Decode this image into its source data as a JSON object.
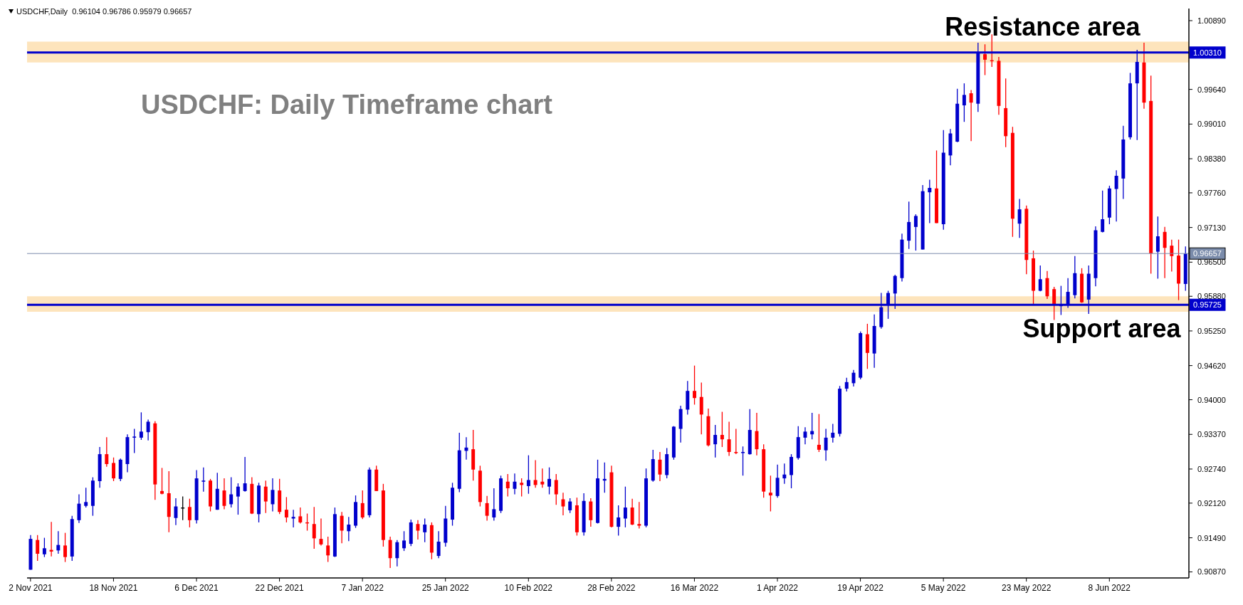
{
  "chart_data": {
    "type": "candlestick",
    "title": "USDCHF: Daily Timeframe chart",
    "annotations": [
      "USDCHF,Daily  0.96104 0.96786 0.95979 0.96657"
    ],
    "categories": [
      "2 Nov 2021",
      null,
      null,
      null,
      null,
      null,
      null,
      null,
      null,
      null,
      null,
      null,
      "18 Nov 2021",
      null,
      null,
      null,
      null,
      null,
      null,
      null,
      null,
      null,
      null,
      null,
      "6 Dec 2021",
      null,
      null,
      null,
      null,
      null,
      null,
      null,
      null,
      null,
      null,
      null,
      "22 Dec 2021",
      null,
      null,
      null,
      null,
      null,
      null,
      null,
      null,
      null,
      null,
      null,
      "7 Jan 2022",
      null,
      null,
      null,
      null,
      null,
      null,
      null,
      null,
      null,
      null,
      null,
      "25 Jan 2022",
      null,
      null,
      null,
      null,
      null,
      null,
      null,
      null,
      null,
      null,
      null,
      "10 Feb 2022",
      null,
      null,
      null,
      null,
      null,
      null,
      null,
      null,
      null,
      null,
      null,
      "28 Feb 2022",
      null,
      null,
      null,
      null,
      null,
      null,
      null,
      null,
      null,
      null,
      null,
      "16 Mar 2022",
      null,
      null,
      null,
      null,
      null,
      null,
      null,
      null,
      null,
      null,
      null,
      "1 Apr 2022",
      null,
      null,
      null,
      null,
      null,
      null,
      null,
      null,
      null,
      null,
      null,
      "19 Apr 2022",
      null,
      null,
      null,
      null,
      null,
      null,
      null,
      null,
      null,
      null,
      null,
      "5 May 2022",
      null,
      null,
      null,
      null,
      null,
      null,
      null,
      null,
      null,
      null,
      null,
      "23 May 2022",
      null,
      null,
      null,
      null,
      null,
      null,
      null,
      null,
      null,
      null,
      null,
      "8 Jun 2022",
      null,
      null,
      null,
      null,
      null,
      null,
      null,
      null,
      null,
      null,
      null
    ],
    "ohlc": [
      [
        0.9091,
        0.9154,
        0.9091,
        0.9147
      ],
      [
        0.9145,
        0.9154,
        0.9107,
        0.912
      ],
      [
        0.9119,
        0.9149,
        0.9114,
        0.913
      ],
      [
        0.9127,
        0.9178,
        0.9115,
        0.9124
      ],
      [
        0.9126,
        0.9161,
        0.912,
        0.9136
      ],
      [
        0.9135,
        0.9158,
        0.9105,
        0.9114
      ],
      [
        0.9115,
        0.9189,
        0.9107,
        0.9183
      ],
      [
        0.9181,
        0.9228,
        0.9176,
        0.9211
      ],
      [
        0.9207,
        0.924,
        0.9204,
        0.9214
      ],
      [
        0.9207,
        0.9259,
        0.9189,
        0.9253
      ],
      [
        0.9252,
        0.9314,
        0.924,
        0.9301
      ],
      [
        0.9301,
        0.9332,
        0.9278,
        0.9283
      ],
      [
        0.9285,
        0.9295,
        0.9252,
        0.9257
      ],
      [
        0.9256,
        0.9293,
        0.9252,
        0.9291
      ],
      [
        0.9283,
        0.9337,
        0.9268,
        0.9332
      ],
      [
        0.9331,
        0.9347,
        0.9303,
        0.9333
      ],
      [
        0.9331,
        0.9377,
        0.9327,
        0.9342
      ],
      [
        0.9341,
        0.9364,
        0.9326,
        0.936
      ],
      [
        0.9357,
        0.9361,
        0.9218,
        0.9246
      ],
      [
        0.9234,
        0.9276,
        0.9228,
        0.9229
      ],
      [
        0.923,
        0.927,
        0.9159,
        0.9187
      ],
      [
        0.9185,
        0.9221,
        0.9172,
        0.9206
      ],
      [
        0.9204,
        0.9224,
        0.9181,
        0.9204
      ],
      [
        0.9205,
        0.922,
        0.9168,
        0.9181
      ],
      [
        0.9181,
        0.9272,
        0.9175,
        0.9257
      ],
      [
        0.9251,
        0.9277,
        0.9233,
        0.9253
      ],
      [
        0.9253,
        0.9256,
        0.9197,
        0.9206
      ],
      [
        0.92,
        0.9267,
        0.92,
        0.9238
      ],
      [
        0.9235,
        0.9257,
        0.9201,
        0.9207
      ],
      [
        0.921,
        0.9259,
        0.9204,
        0.9228
      ],
      [
        0.9224,
        0.9248,
        0.9191,
        0.9242
      ],
      [
        0.9234,
        0.9296,
        0.9233,
        0.9248
      ],
      [
        0.9247,
        0.9259,
        0.9192,
        0.9193
      ],
      [
        0.9192,
        0.9249,
        0.9177,
        0.9244
      ],
      [
        0.9242,
        0.9253,
        0.9194,
        0.9215
      ],
      [
        0.921,
        0.9257,
        0.9197,
        0.9236
      ],
      [
        0.9235,
        0.9256,
        0.9192,
        0.9196
      ],
      [
        0.92,
        0.9223,
        0.9177,
        0.9186
      ],
      [
        0.9184,
        0.92,
        0.9168,
        0.9187
      ],
      [
        0.9188,
        0.9204,
        0.9175,
        0.9177
      ],
      [
        0.9177,
        0.9193,
        0.9162,
        0.9176
      ],
      [
        0.9174,
        0.9205,
        0.9129,
        0.9148
      ],
      [
        0.9147,
        0.9184,
        0.9135,
        0.9137
      ],
      [
        0.9135,
        0.9151,
        0.9105,
        0.9117
      ],
      [
        0.9115,
        0.9204,
        0.9114,
        0.9192
      ],
      [
        0.9189,
        0.9196,
        0.9139,
        0.9162
      ],
      [
        0.9161,
        0.9187,
        0.9143,
        0.9173
      ],
      [
        0.9171,
        0.9226,
        0.9167,
        0.9214
      ],
      [
        0.9212,
        0.9235,
        0.9183,
        0.9186
      ],
      [
        0.919,
        0.9277,
        0.9186,
        0.9273
      ],
      [
        0.9273,
        0.928,
        0.9234,
        0.9234
      ],
      [
        0.9235,
        0.9247,
        0.9133,
        0.9145
      ],
      [
        0.9145,
        0.9151,
        0.9094,
        0.9112
      ],
      [
        0.9112,
        0.9145,
        0.9097,
        0.9141
      ],
      [
        0.913,
        0.9161,
        0.9125,
        0.9144
      ],
      [
        0.9138,
        0.9182,
        0.9134,
        0.9177
      ],
      [
        0.9174,
        0.9181,
        0.9146,
        0.9162
      ],
      [
        0.9159,
        0.9184,
        0.9141,
        0.9173
      ],
      [
        0.9172,
        0.9177,
        0.911,
        0.9122
      ],
      [
        0.9116,
        0.9161,
        0.9112,
        0.9142
      ],
      [
        0.914,
        0.9207,
        0.9133,
        0.9184
      ],
      [
        0.9182,
        0.9249,
        0.9171,
        0.924
      ],
      [
        0.9238,
        0.934,
        0.9232,
        0.9308
      ],
      [
        0.9307,
        0.9332,
        0.9291,
        0.9313
      ],
      [
        0.931,
        0.9345,
        0.9253,
        0.9273
      ],
      [
        0.9271,
        0.928,
        0.9206,
        0.9214
      ],
      [
        0.9212,
        0.9225,
        0.918,
        0.9189
      ],
      [
        0.9186,
        0.9239,
        0.918,
        0.9201
      ],
      [
        0.9198,
        0.9262,
        0.9194,
        0.9257
      ],
      [
        0.9251,
        0.9265,
        0.9224,
        0.9239
      ],
      [
        0.9238,
        0.9266,
        0.9228,
        0.9251
      ],
      [
        0.9249,
        0.9257,
        0.9224,
        0.9245
      ],
      [
        0.9243,
        0.9299,
        0.9229,
        0.9254
      ],
      [
        0.9254,
        0.929,
        0.924,
        0.9245
      ],
      [
        0.9251,
        0.9275,
        0.924,
        0.9246
      ],
      [
        0.9242,
        0.9277,
        0.9228,
        0.9256
      ],
      [
        0.9254,
        0.9265,
        0.9209,
        0.9228
      ],
      [
        0.9219,
        0.9231,
        0.919,
        0.9206
      ],
      [
        0.9199,
        0.9221,
        0.9194,
        0.9215
      ],
      [
        0.9208,
        0.9222,
        0.9153,
        0.9159
      ],
      [
        0.9159,
        0.923,
        0.9153,
        0.9216
      ],
      [
        0.9215,
        0.9221,
        0.9169,
        0.9181
      ],
      [
        0.9176,
        0.9291,
        0.9175,
        0.9257
      ],
      [
        0.9253,
        0.9286,
        0.9231,
        0.9256
      ],
      [
        0.9268,
        0.928,
        0.9168,
        0.9169
      ],
      [
        0.9169,
        0.9208,
        0.9153,
        0.9186
      ],
      [
        0.9184,
        0.9242,
        0.9168,
        0.9204
      ],
      [
        0.9204,
        0.922,
        0.9172,
        0.9173
      ],
      [
        0.9174,
        0.9214,
        0.9166,
        0.9171
      ],
      [
        0.9171,
        0.9275,
        0.9168,
        0.9257
      ],
      [
        0.9253,
        0.9309,
        0.9251,
        0.9292
      ],
      [
        0.9291,
        0.9305,
        0.9252,
        0.9264
      ],
      [
        0.9263,
        0.9312,
        0.9257,
        0.9301
      ],
      [
        0.9295,
        0.9352,
        0.9291,
        0.9351
      ],
      [
        0.9347,
        0.9389,
        0.9322,
        0.9383
      ],
      [
        0.9382,
        0.9434,
        0.9373,
        0.9416
      ],
      [
        0.9416,
        0.9462,
        0.9391,
        0.9403
      ],
      [
        0.9405,
        0.9431,
        0.9337,
        0.9373
      ],
      [
        0.937,
        0.9384,
        0.9315,
        0.9317
      ],
      [
        0.9319,
        0.9354,
        0.9295,
        0.9336
      ],
      [
        0.9336,
        0.9378,
        0.9314,
        0.9328
      ],
      [
        0.9328,
        0.936,
        0.9298,
        0.9305
      ],
      [
        0.9305,
        0.9347,
        0.9301,
        0.9303
      ],
      [
        0.9303,
        0.9315,
        0.9262,
        0.9305
      ],
      [
        0.9301,
        0.9383,
        0.93,
        0.9345
      ],
      [
        0.9343,
        0.9376,
        0.9299,
        0.931
      ],
      [
        0.931,
        0.9319,
        0.9222,
        0.9233
      ],
      [
        0.9231,
        0.9262,
        0.9197,
        0.9226
      ],
      [
        0.9225,
        0.9282,
        0.9222,
        0.9258
      ],
      [
        0.9257,
        0.9284,
        0.9247,
        0.9264
      ],
      [
        0.9263,
        0.9301,
        0.9239,
        0.9296
      ],
      [
        0.9294,
        0.9352,
        0.9291,
        0.9332
      ],
      [
        0.9331,
        0.935,
        0.9319,
        0.9342
      ],
      [
        0.9337,
        0.9376,
        0.9328,
        0.9343
      ],
      [
        0.9318,
        0.9374,
        0.9305,
        0.9309
      ],
      [
        0.9308,
        0.9347,
        0.9289,
        0.9331
      ],
      [
        0.9331,
        0.9356,
        0.9322,
        0.934
      ],
      [
        0.9338,
        0.9425,
        0.9333,
        0.942
      ],
      [
        0.942,
        0.944,
        0.9415,
        0.9432
      ],
      [
        0.943,
        0.9454,
        0.9424,
        0.9449
      ],
      [
        0.944,
        0.9524,
        0.9437,
        0.9521
      ],
      [
        0.9519,
        0.9538,
        0.9456,
        0.9485
      ],
      [
        0.9484,
        0.9555,
        0.9458,
        0.9534
      ],
      [
        0.9532,
        0.9594,
        0.9529,
        0.9568
      ],
      [
        0.9573,
        0.9598,
        0.9547,
        0.9594
      ],
      [
        0.9593,
        0.9627,
        0.9565,
        0.9625
      ],
      [
        0.9621,
        0.9702,
        0.9615,
        0.9691
      ],
      [
        0.9689,
        0.976,
        0.9674,
        0.9723
      ],
      [
        0.9714,
        0.9737,
        0.9671,
        0.9734
      ],
      [
        0.9673,
        0.979,
        0.9673,
        0.9779
      ],
      [
        0.9777,
        0.98,
        0.9721,
        0.9785
      ],
      [
        0.9784,
        0.9853,
        0.9721,
        0.9721
      ],
      [
        0.9719,
        0.989,
        0.9709,
        0.9849
      ],
      [
        0.9844,
        0.9892,
        0.9826,
        0.9884
      ],
      [
        0.9869,
        0.9965,
        0.9868,
        0.9938
      ],
      [
        0.9935,
        0.9975,
        0.9905,
        0.9954
      ],
      [
        0.9957,
        0.9963,
        0.987,
        0.994
      ],
      [
        0.9938,
        1.0049,
        0.9923,
        1.003
      ],
      [
        1.0028,
        1.0046,
        0.999,
        1.0018
      ],
      [
        1.0017,
        1.0064,
        1.0005,
        1.0016
      ],
      [
        1.0016,
        1.0023,
        0.9918,
        0.9934
      ],
      [
        0.993,
        0.9984,
        0.9859,
        0.9879
      ],
      [
        0.9885,
        0.9896,
        0.9696,
        0.9729
      ],
      [
        0.972,
        0.9765,
        0.9694,
        0.9746
      ],
      [
        0.9747,
        0.9753,
        0.9628,
        0.9654
      ],
      [
        0.9657,
        0.9671,
        0.9574,
        0.9598
      ],
      [
        0.9598,
        0.9644,
        0.9597,
        0.9619
      ],
      [
        0.9621,
        0.9634,
        0.9583,
        0.9588
      ],
      [
        0.9601,
        0.9605,
        0.9545,
        0.9573
      ],
      [
        0.957,
        0.9607,
        0.9554,
        0.9573
      ],
      [
        0.9573,
        0.9621,
        0.9567,
        0.9596
      ],
      [
        0.959,
        0.9661,
        0.9584,
        0.963
      ],
      [
        0.9629,
        0.9639,
        0.9576,
        0.9577
      ],
      [
        0.9582,
        0.9644,
        0.9556,
        0.9629
      ],
      [
        0.9621,
        0.9715,
        0.9606,
        0.9708
      ],
      [
        0.9705,
        0.978,
        0.9704,
        0.9728
      ],
      [
        0.9731,
        0.9789,
        0.9719,
        0.9784
      ],
      [
        0.9783,
        0.9817,
        0.9724,
        0.9807
      ],
      [
        0.9802,
        0.9898,
        0.9765,
        0.9873
      ],
      [
        0.9877,
        0.9994,
        0.9873,
        0.9975
      ],
      [
        0.9975,
        1.0036,
        0.9872,
        1.0014
      ],
      [
        1.0013,
        1.0049,
        0.9929,
        0.994
      ],
      [
        0.9943,
        0.9989,
        0.9629,
        0.9666
      ],
      [
        0.9669,
        0.9733,
        0.962,
        0.9697
      ],
      [
        0.9705,
        0.9714,
        0.9621,
        0.9676
      ],
      [
        0.968,
        0.9691,
        0.9633,
        0.9661
      ],
      [
        0.9662,
        0.9691,
        0.9581,
        0.9611
      ],
      [
        0.96104,
        0.96786,
        0.95979,
        0.96657
      ]
    ],
    "colors": [
      "#0000cc",
      "#ff0000",
      "#0000cc",
      "#ff0000",
      "#0000cc",
      "#ff0000",
      "#0000cc",
      "#0000cc",
      "#0000cc",
      "#0000cc",
      "#0000cc",
      "#ff0000",
      "#ff0000",
      "#0000cc",
      "#0000cc",
      "#0000cc",
      "#0000cc",
      "#0000cc",
      "#ff0000",
      "#ff0000",
      "#ff0000",
      "#0000cc",
      "#000000",
      "#ff0000",
      "#0000cc",
      "#0000cc",
      "#ff0000",
      "#0000cc",
      "#ff0000",
      "#0000cc",
      "#0000cc",
      "#0000cc",
      "#ff0000",
      "#0000cc",
      "#ff0000",
      "#0000cc",
      "#ff0000",
      "#ff0000",
      "#0000cc",
      "#ff0000",
      "#ff0000",
      "#ff0000",
      "#ff0000",
      "#ff0000",
      "#0000cc",
      "#ff0000",
      "#0000cc",
      "#0000cc",
      "#ff0000",
      "#0000cc",
      "#ff0000",
      "#ff0000",
      "#ff0000",
      "#0000cc",
      "#0000cc",
      "#0000cc",
      "#ff0000",
      "#0000cc",
      "#ff0000",
      "#0000cc",
      "#0000cc",
      "#0000cc",
      "#0000cc",
      "#0000cc",
      "#ff0000",
      "#ff0000",
      "#ff0000",
      "#0000cc",
      "#0000cc",
      "#ff0000",
      "#0000cc",
      "#ff0000",
      "#0000cc",
      "#ff0000",
      "#ff0000",
      "#0000cc",
      "#ff0000",
      "#ff0000",
      "#0000cc",
      "#ff0000",
      "#0000cc",
      "#ff0000",
      "#0000cc",
      "#0000cc",
      "#ff0000",
      "#0000cc",
      "#0000cc",
      "#ff0000",
      "#ff0000",
      "#0000cc",
      "#0000cc",
      "#ff0000",
      "#0000cc",
      "#0000cc",
      "#0000cc",
      "#0000cc",
      "#ff0000",
      "#ff0000",
      "#ff0000",
      "#0000cc",
      "#ff0000",
      "#ff0000",
      "#ff0000",
      "#0000cc",
      "#0000cc",
      "#ff0000",
      "#ff0000",
      "#ff0000",
      "#0000cc",
      "#0000cc",
      "#0000cc",
      "#0000cc",
      "#0000cc",
      "#0000cc",
      "#ff0000",
      "#0000cc",
      "#0000cc",
      "#0000cc",
      "#0000cc",
      "#0000cc",
      "#0000cc",
      "#ff0000",
      "#0000cc",
      "#0000cc",
      "#0000cc",
      "#0000cc",
      "#0000cc",
      "#0000cc",
      "#0000cc",
      "#0000cc",
      "#0000cc",
      "#ff0000",
      "#0000cc",
      "#0000cc",
      "#0000cc",
      "#0000cc",
      "#ff0000",
      "#0000cc",
      "#ff0000",
      "#ff0000",
      "#ff0000",
      "#ff0000",
      "#ff0000",
      "#0000cc",
      "#ff0000",
      "#ff0000",
      "#0000cc",
      "#ff0000",
      "#ff0000",
      "#0000cc",
      "#0000cc",
      "#0000cc",
      "#ff0000",
      "#0000cc",
      "#0000cc",
      "#0000cc",
      "#0000cc",
      "#0000cc",
      "#0000cc",
      "#0000cc",
      "#0000cc",
      "#ff0000",
      "#ff0000",
      "#0000cc",
      "#ff0000",
      "#ff0000",
      "#ff0000",
      "#0000cc"
    ],
    "ylim": [
      0.9076,
      1.0111
    ],
    "yticks": [
      {
        "value": 1.0089,
        "label": "1.00890"
      },
      {
        "value": 0.9964,
        "label": "0.99640"
      },
      {
        "value": 0.9901,
        "label": "0.99010"
      },
      {
        "value": 0.9838,
        "label": "0.98380"
      },
      {
        "value": 0.9776,
        "label": "0.97760"
      },
      {
        "value": 0.9713,
        "label": "0.97130"
      },
      {
        "value": 0.965,
        "label": "0.96500"
      },
      {
        "value": 0.9588,
        "label": "0.95880"
      },
      {
        "value": 0.9525,
        "label": "0.95250"
      },
      {
        "value": 0.9462,
        "label": "0.94620"
      },
      {
        "value": 0.94,
        "label": "0.94000"
      },
      {
        "value": 0.9337,
        "label": "0.93370"
      },
      {
        "value": 0.9274,
        "label": "0.92740"
      },
      {
        "value": 0.9212,
        "label": "0.92120"
      },
      {
        "value": 0.9149,
        "label": "0.91490"
      },
      {
        "value": 0.9087,
        "label": "0.90870"
      }
    ],
    "ref_lines": [
      {
        "axis": "y",
        "value": 1.0031,
        "label": "1.00310",
        "color": "#0000cc",
        "line_style": "solid"
      },
      {
        "axis": "y",
        "value": 0.95725,
        "label": "0.95725",
        "color": "#0000cc",
        "line_style": "solid"
      },
      {
        "axis": "y",
        "value": 0.96657,
        "label": "0.96657",
        "color": "#7b8cab",
        "line_style": "solid"
      }
    ],
    "bands": [
      {
        "axis": "y",
        "from": 1.0013,
        "to": 1.0051,
        "label": "Resistance area",
        "color": "#fddfb0"
      },
      {
        "axis": "y",
        "from": 0.956,
        "to": 0.9588,
        "label": "Support area",
        "color": "#fddfb0"
      }
    ],
    "grid": false
  }
}
